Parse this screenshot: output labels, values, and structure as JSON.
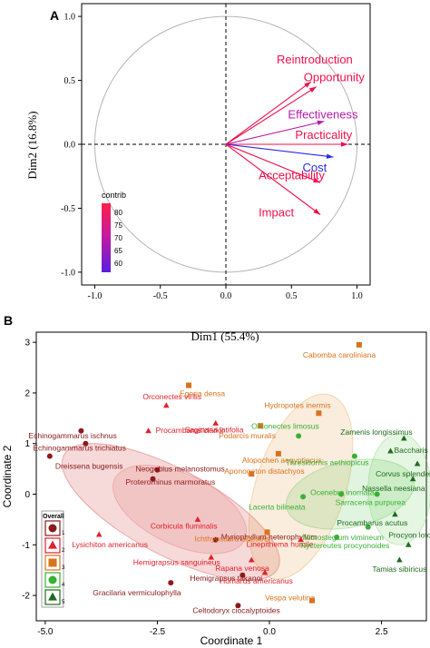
{
  "panel_a": {
    "label": "A",
    "xlabel": "Dim1 (55.4%)",
    "ylabel": "Dim2 (16.8%)",
    "x_ticks": [
      "-1.0",
      "-0.5",
      "0.0",
      "0.5",
      "1.0"
    ],
    "y_ticks": [
      "-1.0",
      "-0.5",
      "0.0",
      "0.5",
      "1.0"
    ],
    "legend_title": "contrib",
    "legend_ticks": [
      "80",
      "75",
      "70",
      "65",
      "60"
    ]
  },
  "panel_b": {
    "label": "B",
    "xlabel": "Coordinate 1",
    "ylabel": "Coordinate 2",
    "x_ticks": [
      "-5.0",
      "-2.5",
      "0.0",
      "2.5"
    ],
    "y_ticks": [
      "3",
      "2",
      "1",
      "0",
      "-1",
      "-2"
    ],
    "legend_title": "Overall",
    "legend_items": [
      "1",
      "2",
      "3",
      "4",
      "5"
    ]
  },
  "colors": {
    "group1": "#8b1a1a",
    "group2": "#e0212b",
    "group3": "#d9731c",
    "group4": "#39b034",
    "group5": "#1e6b1e",
    "vector_high": "#f0104a",
    "vector_mid": "#b51aa8",
    "vector_low": "#2a2ae8"
  },
  "chart_data": [
    {
      "type": "scatter",
      "title": "",
      "xlabel": "Dim1 (55.4%)",
      "ylabel": "Dim2 (16.8%)",
      "xlim": [
        -1.1,
        1.1
      ],
      "ylim": [
        -1.1,
        1.1
      ],
      "grid": false,
      "legend": "color scale, lower-left",
      "color_scale": {
        "title": "contrib",
        "ticks": [
          80,
          75,
          70,
          65,
          60
        ]
      },
      "vectors": [
        {
          "name": "Reintroduction",
          "x": 0.65,
          "y": 0.49,
          "contrib": 82
        },
        {
          "name": "Opportunity",
          "x": 0.69,
          "y": 0.45,
          "contrib": 80
        },
        {
          "name": "Effectiveness",
          "x": 0.75,
          "y": 0.18,
          "contrib": 70
        },
        {
          "name": "Practicality",
          "x": 0.93,
          "y": 0.0,
          "contrib": 84
        },
        {
          "name": "Cost",
          "x": 0.82,
          "y": -0.1,
          "contrib": 58
        },
        {
          "name": "Acceptability",
          "x": 0.72,
          "y": -0.3,
          "contrib": 84
        },
        {
          "name": "Impact",
          "x": 0.72,
          "y": -0.55,
          "contrib": 82
        }
      ]
    },
    {
      "type": "scatter",
      "title": "",
      "xlabel": "Coordinate 1",
      "ylabel": "Coordinate 2",
      "xlim": [
        -5.2,
        3.5
      ],
      "ylim": [
        -2.5,
        3.2
      ],
      "grid": false,
      "legend": "lower-left",
      "groups": [
        {
          "name": "1",
          "marker": "circle",
          "color": "#8b1a1a"
        },
        {
          "name": "2",
          "marker": "triangle",
          "color": "#e0212b"
        },
        {
          "name": "3",
          "marker": "square",
          "color": "#d9731c"
        },
        {
          "name": "4",
          "marker": "circle",
          "color": "#39b034"
        },
        {
          "name": "5",
          "marker": "triangle",
          "color": "#1e6b1e"
        }
      ],
      "points": [
        {
          "label": "Echinogammarus ischnus",
          "x": -4.2,
          "y": 1.25,
          "group": 1
        },
        {
          "label": "Echinogammarus trichiatus",
          "x": -4.1,
          "y": 1.0,
          "group": 1
        },
        {
          "label": "Dreissena bugensis",
          "x": -4.9,
          "y": 0.75,
          "group": 1
        },
        {
          "label": "Neogobius melanostomus",
          "x": -2.5,
          "y": 0.48,
          "group": 1
        },
        {
          "label": "Proterorhinus marmoratus",
          "x": -2.6,
          "y": 0.3,
          "group": 1
        },
        {
          "label": "Myriophyllum heterophyllum",
          "x": -1.2,
          "y": -0.9,
          "group": 1
        },
        {
          "label": "Hemigrapsus takanoi",
          "x": -0.6,
          "y": -1.6,
          "group": 1
        },
        {
          "label": "Gracilaria vermiculophylla",
          "x": -2.2,
          "y": -1.75,
          "group": 1
        },
        {
          "label": "Celtodoryx ciocalyptoides",
          "x": -0.7,
          "y": -2.2,
          "group": 1
        },
        {
          "label": "Orconectes virilis",
          "x": -2.3,
          "y": 1.75,
          "group": 2
        },
        {
          "label": "Sagittaria latifolia",
          "x": -1.2,
          "y": 1.4,
          "group": 2
        },
        {
          "label": "Procambarus clarkii",
          "x": -2.7,
          "y": 1.25,
          "group": 2
        },
        {
          "label": "Corbicula fluminalis",
          "x": -1.6,
          "y": -0.5,
          "group": 2
        },
        {
          "label": "Lysichiton americanus",
          "x": -3.8,
          "y": -0.8,
          "group": 2
        },
        {
          "label": "Linepithema humile",
          "x": 0.7,
          "y": -0.9,
          "group": 2
        },
        {
          "label": "Hemigrapsus sanguineus",
          "x": -1.3,
          "y": -1.25,
          "group": 2
        },
        {
          "label": "Rapana venosa",
          "x": -0.4,
          "y": -1.3,
          "group": 2
        },
        {
          "label": "Homarus americanus",
          "x": -0.1,
          "y": -1.55,
          "group": 2
        },
        {
          "label": "Cabomba caroliniana",
          "x": 2.0,
          "y": 2.95,
          "group": 3
        },
        {
          "label": "Egeria densa",
          "x": -1.8,
          "y": 2.15,
          "group": 3
        },
        {
          "label": "Hydropotes inermis",
          "x": 1.1,
          "y": 1.6,
          "group": 3
        },
        {
          "label": "Podarcis muralis",
          "x": -0.2,
          "y": 1.35,
          "group": 3
        },
        {
          "label": "Alopochen aegyptiacus",
          "x": 0.2,
          "y": 0.8,
          "group": 3
        },
        {
          "label": "Aponogeton distachyos",
          "x": -0.4,
          "y": 0.4,
          "group": 3
        },
        {
          "label": "Ichthyosaura alpestris",
          "x": -0.05,
          "y": -0.75,
          "group": 3
        },
        {
          "label": "Vespa velutina",
          "x": 0.95,
          "y": -2.1,
          "group": 3
        },
        {
          "label": "Orconectes limosus",
          "x": 0.65,
          "y": 1.15,
          "group": 4
        },
        {
          "label": "Threskiornis aethiopicus",
          "x": 1.9,
          "y": 0.75,
          "group": 4
        },
        {
          "label": "Ocenebra inornata",
          "x": 1.6,
          "y": 0.0,
          "group": 4
        },
        {
          "label": "Lacerta bilineata",
          "x": 0.75,
          "y": -0.05,
          "group": 4
        },
        {
          "label": "Sarracenia purpurea",
          "x": 2.4,
          "y": 0.0,
          "group": 4
        },
        {
          "label": "Microstegium vimineum",
          "x": 2.2,
          "y": -0.65,
          "group": 4
        },
        {
          "label": "Nyctereutes procyonoides",
          "x": 1.5,
          "y": -0.85,
          "group": 4
        },
        {
          "label": "Zamenis longissimus",
          "x": 3.0,
          "y": 1.1,
          "group": 5
        },
        {
          "label": "Baccharis halimifolia",
          "x": 2.7,
          "y": 0.85,
          "group": 5
        },
        {
          "label": "Corvus splendens",
          "x": 3.3,
          "y": 0.6,
          "group": 5
        },
        {
          "label": "Nassella neesiana",
          "x": 3.2,
          "y": 0.3,
          "group": 5
        },
        {
          "label": "Procambarus acutus",
          "x": 2.8,
          "y": -0.4,
          "group": 5
        },
        {
          "label": "Procyon lotor",
          "x": 3.1,
          "y": -1.0,
          "group": 5
        },
        {
          "label": "Tamias sibiricus",
          "x": 2.9,
          "y": -1.3,
          "group": 5
        }
      ]
    }
  ]
}
